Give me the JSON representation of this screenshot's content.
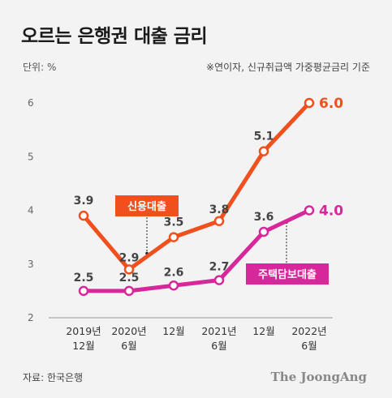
{
  "header": {
    "title": "오르는 은행권 대출 금리",
    "unit_label": "단위: %",
    "note": "※연이자, 신규취급액  가중평균금리 기준"
  },
  "footer": {
    "source": "자료: 한국은행",
    "brand": "The JoongAng"
  },
  "chart_data": {
    "type": "line",
    "title": "오르는 은행권 대출 금리",
    "xlabel": "",
    "ylabel": "",
    "unit": "%",
    "categories": [
      "2019년 12월",
      "2020년 6월",
      "12월",
      "2021년 6월",
      "12월",
      "2022년 6월"
    ],
    "x_tick_lines": [
      [
        "2019년",
        "12월"
      ],
      [
        "2020년",
        "6월"
      ],
      [
        "12월"
      ],
      [
        "2021년",
        "6월"
      ],
      [
        "12월"
      ],
      [
        "2022년",
        "6월"
      ]
    ],
    "y_ticks": [
      2,
      3,
      4,
      5,
      6
    ],
    "ylim": [
      2,
      6.5
    ],
    "grid": false,
    "series": [
      {
        "name": "신용대출",
        "values": [
          3.9,
          2.9,
          3.5,
          3.8,
          5.1,
          6.0
        ],
        "labels": [
          "3.9",
          "2.9",
          "3.5",
          "3.8",
          "5.1",
          "6.0"
        ],
        "color": "#f0501e"
      },
      {
        "name": "주택담보대출",
        "values": [
          2.5,
          2.5,
          2.6,
          2.7,
          3.6,
          4.0
        ],
        "labels": [
          "2.5",
          "2.5",
          "2.6",
          "2.7",
          "3.6",
          "4.0"
        ],
        "color": "#d6289a"
      }
    ]
  }
}
